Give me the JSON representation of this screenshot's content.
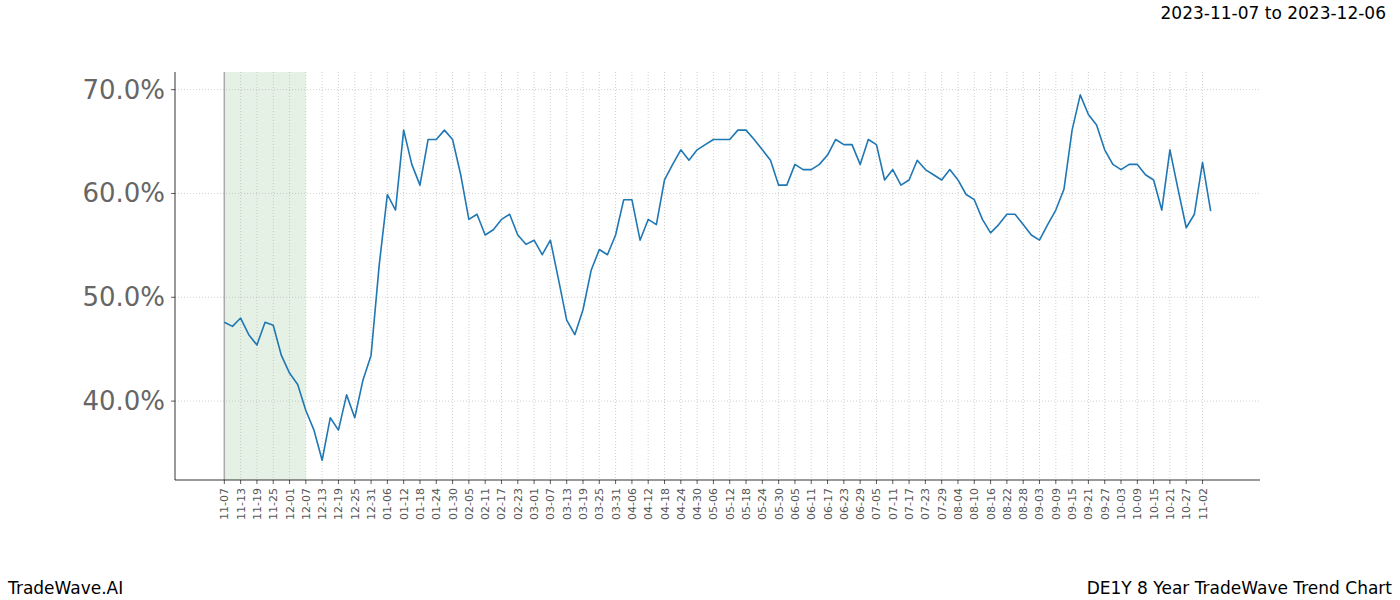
{
  "chart_data": {
    "type": "line",
    "title": "2023-11-07 to 2023-12-06",
    "source": "TradeWave.AI",
    "subtitle": "DE1Y 8 Year TradeWave Trend Chart",
    "color": "#1f77b4",
    "grid": true,
    "highlight": {
      "start": "11-07",
      "end": "12-07"
    },
    "categories": [
      "11-07",
      null,
      "11-13",
      null,
      "11-19",
      null,
      "11-25",
      null,
      "12-01",
      null,
      "12-07",
      null,
      "12-13",
      null,
      "12-19",
      null,
      "12-25",
      null,
      "12-31",
      null,
      "01-06",
      null,
      "01-12",
      null,
      "01-18",
      null,
      "01-24",
      null,
      "01-30",
      null,
      "02-05",
      null,
      "02-11",
      null,
      "02-17",
      null,
      "02-23",
      null,
      "03-01",
      null,
      "03-07",
      null,
      "03-13",
      null,
      "03-19",
      null,
      "03-25",
      null,
      "03-31",
      null,
      "04-06",
      null,
      "04-12",
      null,
      "04-18",
      null,
      "04-24",
      null,
      "04-30",
      null,
      "05-06",
      null,
      "05-12",
      null,
      "05-18",
      null,
      "05-24",
      null,
      "05-30",
      null,
      "06-05",
      null,
      "06-11",
      null,
      "06-17",
      null,
      "06-23",
      null,
      "06-29",
      null,
      "07-05",
      null,
      "07-11",
      null,
      "07-17",
      null,
      "07-23",
      null,
      "07-29",
      null,
      "08-04",
      null,
      "08-10",
      null,
      "08-16",
      null,
      "08-22",
      null,
      "08-28",
      null,
      "09-03",
      null,
      "09-09",
      null,
      "09-15",
      null,
      "09-21",
      null,
      "09-27",
      null,
      "10-03",
      null,
      "10-09",
      null,
      "10-15",
      null,
      "10-21",
      null,
      "10-27",
      null,
      "11-02",
      null
    ],
    "values": [
      47.6,
      47.2,
      48.0,
      46.4,
      45.4,
      47.6,
      47.3,
      44.4,
      42.7,
      41.6,
      39.1,
      37.2,
      34.3,
      38.4,
      37.2,
      40.6,
      38.4,
      42.0,
      44.4,
      53.1,
      59.9,
      58.4,
      66.1,
      62.8,
      60.8,
      65.2,
      65.2,
      66.1,
      65.2,
      61.8,
      57.5,
      58.0,
      56.0,
      56.5,
      57.5,
      58.0,
      56.0,
      55.1,
      55.5,
      54.1,
      55.5,
      51.7,
      47.8,
      46.4,
      48.8,
      52.6,
      54.6,
      54.1,
      56.0,
      59.4,
      59.4,
      55.5,
      57.5,
      57.0,
      61.3,
      62.8,
      64.2,
      63.2,
      64.2,
      64.7,
      65.2,
      65.2,
      65.2,
      66.1,
      66.1,
      65.2,
      64.2,
      63.2,
      60.8,
      60.8,
      62.8,
      62.3,
      62.3,
      62.8,
      63.7,
      65.2,
      64.7,
      64.7,
      62.8,
      65.2,
      64.7,
      61.3,
      62.3,
      60.8,
      61.3,
      63.2,
      62.3,
      61.8,
      61.3,
      62.3,
      61.3,
      59.9,
      59.4,
      57.5,
      56.2,
      57.0,
      58.0,
      58.0,
      57.0,
      56.0,
      55.5,
      57.0,
      58.4,
      60.4,
      66.1,
      69.5,
      67.6,
      66.6,
      64.2,
      62.8,
      62.3,
      62.8,
      62.8,
      61.8,
      61.3,
      58.4,
      64.2,
      60.4,
      56.7,
      58.0,
      63.0,
      58.3
    ],
    "ylim": [
      32.4,
      71.7
    ],
    "yticks": [
      {
        "value": 40,
        "label": "40.0%"
      },
      {
        "value": 50,
        "label": "50.0%"
      },
      {
        "value": 60,
        "label": "60.0%"
      },
      {
        "value": 70,
        "label": "70.0%"
      }
    ]
  }
}
